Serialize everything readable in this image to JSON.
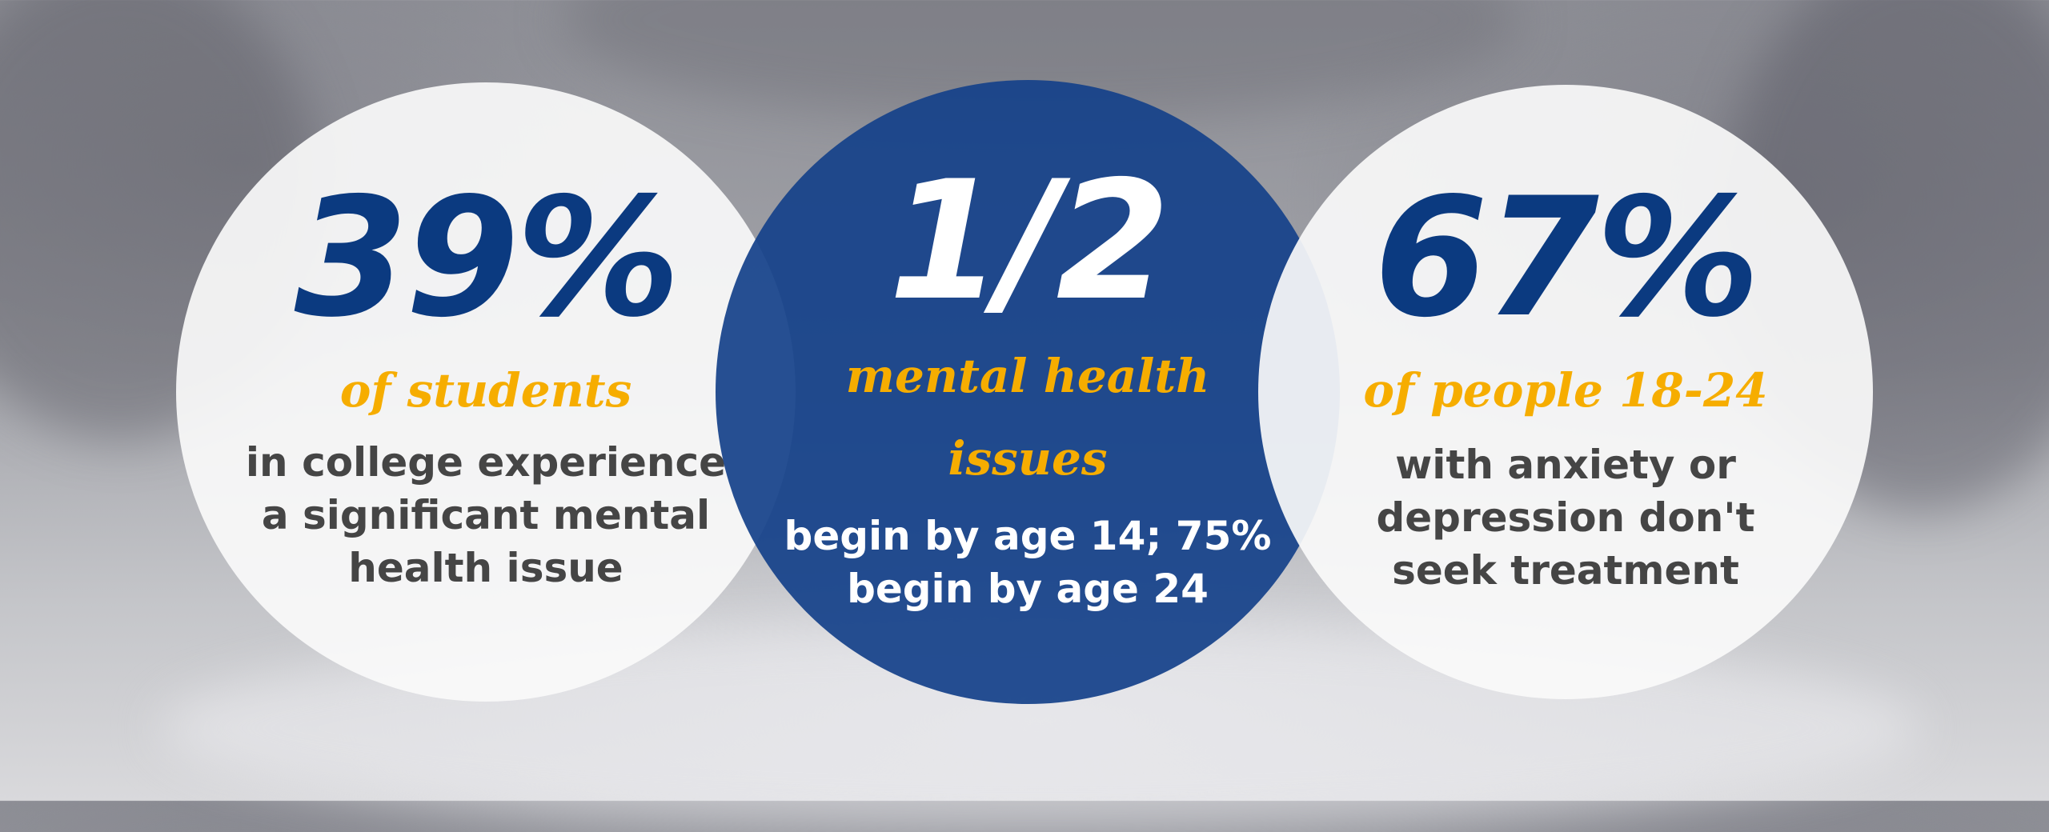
{
  "colors": {
    "navy": "#0b3a80",
    "accent_orange": "#f6ad00",
    "body_gray": "#454545",
    "middle_circle": "#16428a"
  },
  "stats": [
    {
      "value": "39%",
      "highlight": "of students",
      "lines": [
        "in college experience",
        "a significant mental",
        "health issue"
      ]
    },
    {
      "value": "1/2",
      "highlight_lines": [
        "mental health",
        "issues"
      ],
      "lines": [
        "begin by age 14; 75%",
        "begin by age 24"
      ]
    },
    {
      "value": "67%",
      "highlight": "of people 18-24",
      "lines": [
        "with anxiety or",
        "depression don't",
        "seek treatment"
      ]
    }
  ]
}
